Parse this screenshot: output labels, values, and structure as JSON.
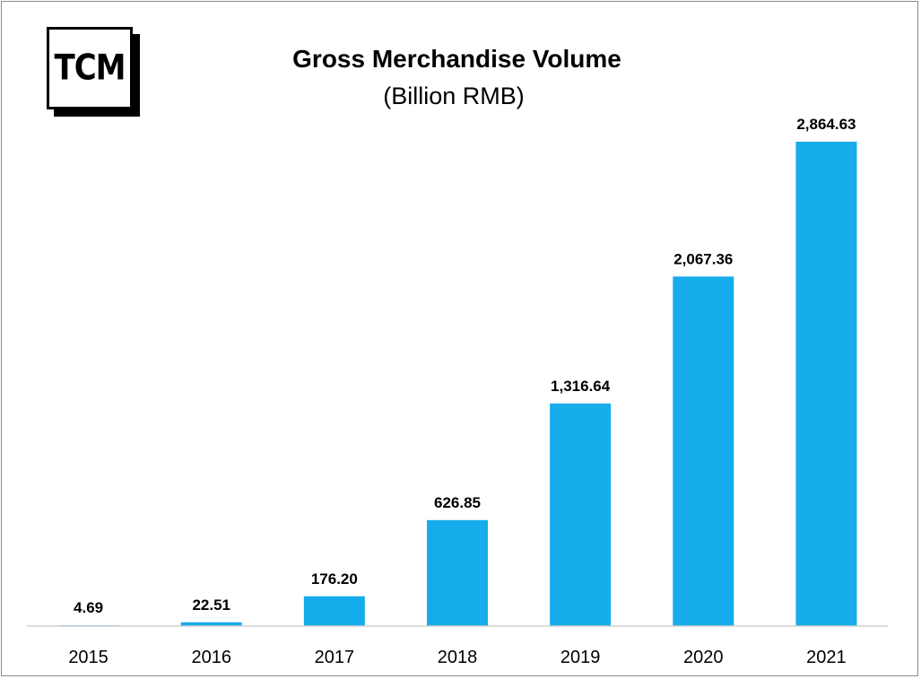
{
  "logo": {
    "text": "TCM"
  },
  "chart_data": {
    "type": "bar",
    "title": "Gross Merchandise Volume",
    "subtitle": "(Billion RMB)",
    "categories": [
      "2015",
      "2016",
      "2017",
      "2018",
      "2019",
      "2020",
      "2021"
    ],
    "values": [
      4.69,
      22.51,
      176.2,
      626.85,
      1316.64,
      2067.36,
      2864.63
    ],
    "data_labels": [
      "4.69",
      "22.51",
      "176.20",
      "626.85",
      "1,316.64",
      "2,067.36",
      "2,864.63"
    ],
    "xlabel": "",
    "ylabel": "",
    "ylim": [
      0,
      2900
    ],
    "grid": false,
    "legend": "none",
    "bar_color": "#17aceb"
  }
}
